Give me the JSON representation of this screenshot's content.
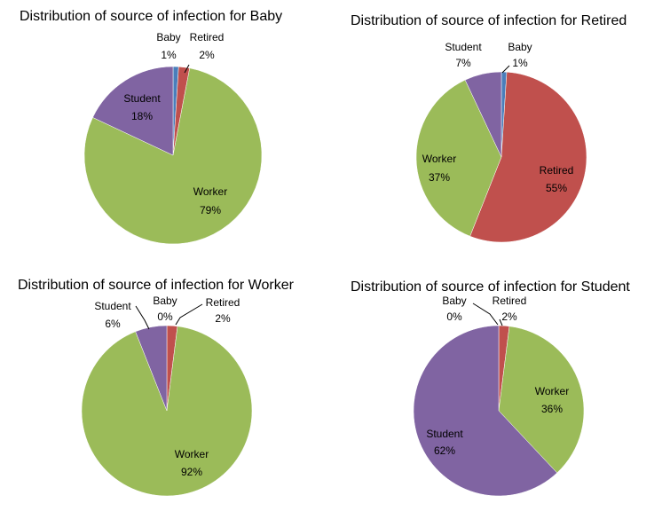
{
  "colors": {
    "Baby": "#4a7ebb",
    "Retired": "#c0504d",
    "Worker": "#9bbb59",
    "Student": "#8064a2"
  },
  "chart_data": [
    {
      "type": "pie",
      "title": "Distribution of source of infection for Baby",
      "slices": [
        {
          "label": "Baby",
          "value": 1,
          "text": "1%"
        },
        {
          "label": "Retired",
          "value": 2,
          "text": "2%"
        },
        {
          "label": "Worker",
          "value": 79,
          "text": "79%"
        },
        {
          "label": "Student",
          "value": 18,
          "text": "18%"
        }
      ]
    },
    {
      "type": "pie",
      "title": "Distribution of source of infection for Retired",
      "slices": [
        {
          "label": "Baby",
          "value": 1,
          "text": "1%"
        },
        {
          "label": "Retired",
          "value": 55,
          "text": "55%"
        },
        {
          "label": "Worker",
          "value": 37,
          "text": "37%"
        },
        {
          "label": "Student",
          "value": 7,
          "text": "7%"
        }
      ]
    },
    {
      "type": "pie",
      "title": "Distribution of source of infection for Worker",
      "slices": [
        {
          "label": "Baby",
          "value": 0,
          "text": "0%"
        },
        {
          "label": "Retired",
          "value": 2,
          "text": "2%"
        },
        {
          "label": "Worker",
          "value": 92,
          "text": "92%"
        },
        {
          "label": "Student",
          "value": 6,
          "text": "6%"
        }
      ]
    },
    {
      "type": "pie",
      "title": "Distribution of source of infection for Student",
      "slices": [
        {
          "label": "Baby",
          "value": 0,
          "text": "0%"
        },
        {
          "label": "Retired",
          "value": 2,
          "text": "2%"
        },
        {
          "label": "Worker",
          "value": 36,
          "text": "36%"
        },
        {
          "label": "Student",
          "value": 62,
          "text": "62%"
        }
      ]
    }
  ]
}
